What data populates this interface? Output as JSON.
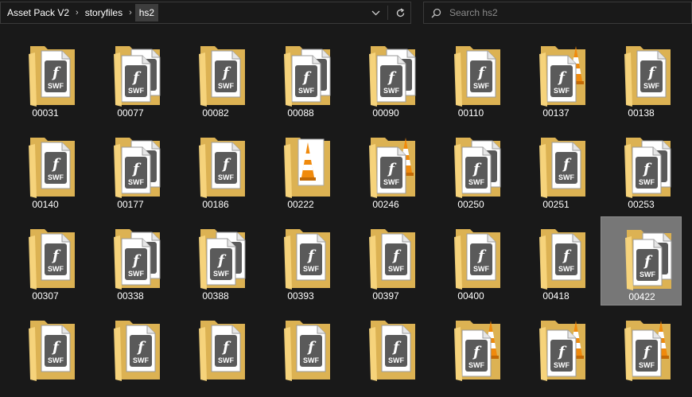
{
  "breadcrumb": {
    "items": [
      {
        "label": "Asset Pack V2"
      },
      {
        "label": "storyfiles"
      },
      {
        "label": "hs2"
      }
    ],
    "separator_icon": "chevron-right-icon"
  },
  "toolbar": {
    "history_icon": "chevron-down-icon",
    "refresh_icon": "refresh-icon"
  },
  "search": {
    "placeholder": "Search hs2",
    "value": "",
    "icon": "search-icon"
  },
  "colors": {
    "background": "#191919",
    "folder_back": "#dcb253",
    "folder_front": "#f7d57d",
    "selection": "#777777",
    "cone_orange": "#f08a0c"
  },
  "files": [
    {
      "name": "00031",
      "type": "swf"
    },
    {
      "name": "00077",
      "type": "swf-stack"
    },
    {
      "name": "00082",
      "type": "swf"
    },
    {
      "name": "00088",
      "type": "swf-stack"
    },
    {
      "name": "00090",
      "type": "swf-stack"
    },
    {
      "name": "00110",
      "type": "swf"
    },
    {
      "name": "00137",
      "type": "swf-vlc"
    },
    {
      "name": "00138",
      "type": "swf"
    },
    {
      "name": "00140",
      "type": "swf"
    },
    {
      "name": "00177",
      "type": "swf-stack"
    },
    {
      "name": "00186",
      "type": "swf"
    },
    {
      "name": "00222",
      "type": "vlc"
    },
    {
      "name": "00246",
      "type": "swf-vlc"
    },
    {
      "name": "00250",
      "type": "swf-stack"
    },
    {
      "name": "00251",
      "type": "swf"
    },
    {
      "name": "00253",
      "type": "swf-stack"
    },
    {
      "name": "00307",
      "type": "swf"
    },
    {
      "name": "00338",
      "type": "swf-stack"
    },
    {
      "name": "00388",
      "type": "swf-stack"
    },
    {
      "name": "00393",
      "type": "swf"
    },
    {
      "name": "00397",
      "type": "swf"
    },
    {
      "name": "00400",
      "type": "swf"
    },
    {
      "name": "00418",
      "type": "swf"
    },
    {
      "name": "00422",
      "type": "swf-stack",
      "selected": true
    },
    {
      "name": "",
      "type": "swf"
    },
    {
      "name": "",
      "type": "swf"
    },
    {
      "name": "",
      "type": "swf"
    },
    {
      "name": "",
      "type": "swf"
    },
    {
      "name": "",
      "type": "swf"
    },
    {
      "name": "",
      "type": "swf-vlc"
    },
    {
      "name": "",
      "type": "swf-vlc"
    },
    {
      "name": "",
      "type": "swf-vlc"
    }
  ],
  "swf_badge": {
    "glyph": "f",
    "text": "SWF"
  }
}
